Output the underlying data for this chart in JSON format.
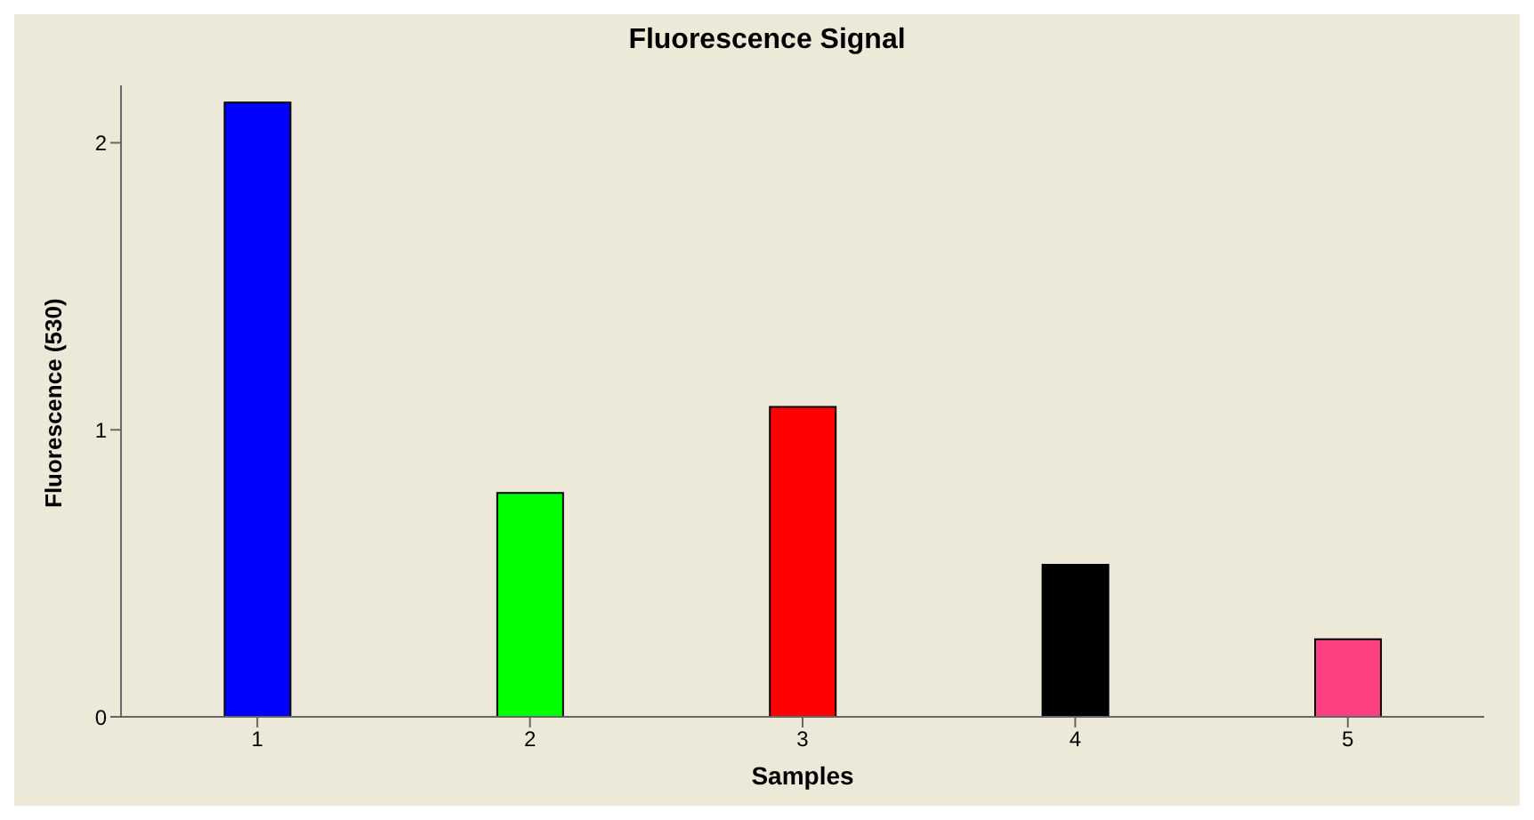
{
  "chart_data": {
    "type": "bar",
    "title": "Fluorescence Signal",
    "xlabel": "Samples",
    "ylabel": "Fluorescence (530)",
    "categories": [
      "1",
      "2",
      "3",
      "4",
      "5"
    ],
    "values": [
      2.14,
      0.78,
      1.08,
      0.53,
      0.27
    ],
    "colors": [
      "#0000ff",
      "#00ff00",
      "#ff0000",
      "#000000",
      "#ff4080"
    ],
    "ylim": [
      0,
      2.2
    ],
    "yticks": [
      0,
      1,
      2
    ],
    "grid": false
  }
}
